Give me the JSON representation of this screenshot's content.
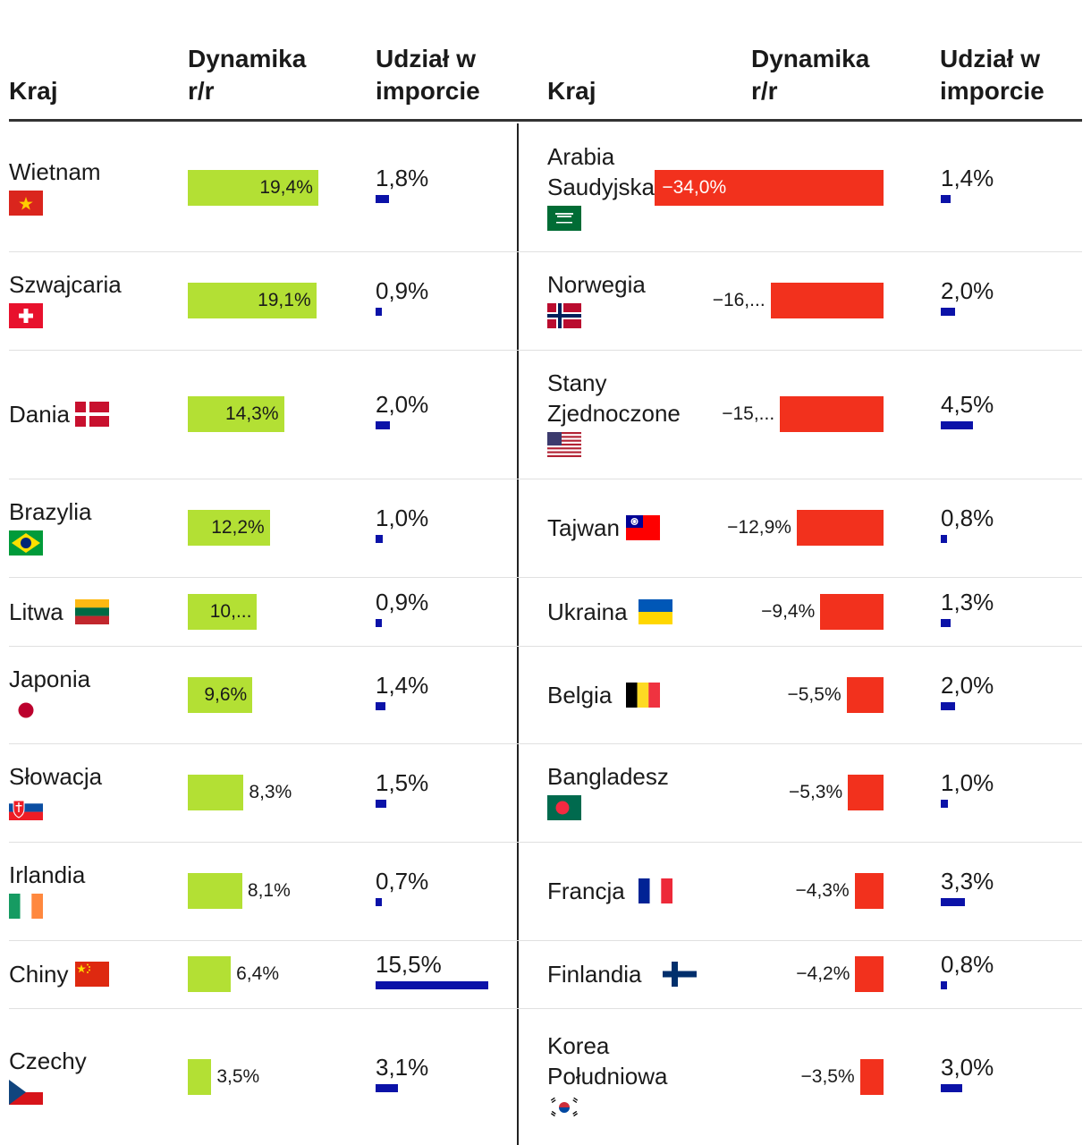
{
  "columns": {
    "country": "Kraj",
    "dynamics": "Dynamika\nr/r",
    "share": "Udział w\nimporcie"
  },
  "colors": {
    "positive": "#b3e034",
    "negative": "#f2311d",
    "share": "#0b12a8"
  },
  "chart_data": {
    "type": "table",
    "value_columns": [
      "Dynamika r/r",
      "Udział w imporcie"
    ],
    "left": [
      {
        "country": "Wietnam",
        "flag": "vietnam-flag",
        "dynamics": 19.4,
        "dynamics_label": "19,4%",
        "share": 1.8,
        "share_label": "1,8%"
      },
      {
        "country": "Szwajcaria",
        "flag": "switzerland-flag",
        "dynamics": 19.1,
        "dynamics_label": "19,1%",
        "share": 0.9,
        "share_label": "0,9%"
      },
      {
        "country": "Dania",
        "flag": "denmark-flag",
        "dynamics": 14.3,
        "dynamics_label": "14,3%",
        "share": 2.0,
        "share_label": "2,0%"
      },
      {
        "country": "Brazylia",
        "flag": "brazil-flag",
        "dynamics": 12.2,
        "dynamics_label": "12,2%",
        "share": 1.0,
        "share_label": "1,0%"
      },
      {
        "country": "Litwa",
        "flag": "lithuania-flag",
        "dynamics": 10.3,
        "dynamics_label": "10,...",
        "share": 0.9,
        "share_label": "0,9%"
      },
      {
        "country": "Japonia",
        "flag": "japan-flag",
        "dynamics": 9.6,
        "dynamics_label": "9,6%",
        "share": 1.4,
        "share_label": "1,4%"
      },
      {
        "country": "Słowacja",
        "flag": "slovakia-flag",
        "dynamics": 8.3,
        "dynamics_label": "8,3%",
        "share": 1.5,
        "share_label": "1,5%"
      },
      {
        "country": "Irlandia",
        "flag": "ireland-flag",
        "dynamics": 8.1,
        "dynamics_label": "8,1%",
        "share": 0.7,
        "share_label": "0,7%"
      },
      {
        "country": "Chiny",
        "flag": "china-flag",
        "dynamics": 6.4,
        "dynamics_label": "6,4%",
        "share": 15.5,
        "share_label": "15,5%"
      },
      {
        "country": "Czechy",
        "flag": "czechia-flag",
        "dynamics": 3.5,
        "dynamics_label": "3,5%",
        "share": 3.1,
        "share_label": "3,1%"
      }
    ],
    "right": [
      {
        "country": "Arabia Saudyjska",
        "flag": "saudi-arabia-flag",
        "dynamics": -34.0,
        "dynamics_label": "−34,0%",
        "share": 1.4,
        "share_label": "1,4%"
      },
      {
        "country": "Norwegia",
        "flag": "norway-flag",
        "dynamics": -16.8,
        "dynamics_label": "−16,...",
        "share": 2.0,
        "share_label": "2,0%"
      },
      {
        "country": "Stany Zjednoczone",
        "flag": "usa-flag",
        "dynamics": -15.4,
        "dynamics_label": "−15,...",
        "share": 4.5,
        "share_label": "4,5%"
      },
      {
        "country": "Tajwan",
        "flag": "taiwan-flag",
        "dynamics": -12.9,
        "dynamics_label": "−12,9%",
        "share": 0.8,
        "share_label": "0,8%"
      },
      {
        "country": "Ukraina",
        "flag": "ukraine-flag",
        "dynamics": -9.4,
        "dynamics_label": "−9,4%",
        "share": 1.3,
        "share_label": "1,3%"
      },
      {
        "country": "Belgia",
        "flag": "belgium-flag",
        "dynamics": -5.5,
        "dynamics_label": "−5,5%",
        "share": 2.0,
        "share_label": "2,0%"
      },
      {
        "country": "Bangladesz",
        "flag": "bangladesh-flag",
        "dynamics": -5.3,
        "dynamics_label": "−5,3%",
        "share": 1.0,
        "share_label": "1,0%"
      },
      {
        "country": "Francja",
        "flag": "france-flag",
        "dynamics": -4.3,
        "dynamics_label": "−4,3%",
        "share": 3.3,
        "share_label": "3,3%"
      },
      {
        "country": "Finlandia",
        "flag": "finland-flag",
        "dynamics": -4.2,
        "dynamics_label": "−4,2%",
        "share": 0.8,
        "share_label": "0,8%"
      },
      {
        "country": "Korea Południowa",
        "flag": "south-korea-flag",
        "dynamics": -3.5,
        "dynamics_label": "−3,5%",
        "share": 3.0,
        "share_label": "3,0%"
      }
    ]
  }
}
